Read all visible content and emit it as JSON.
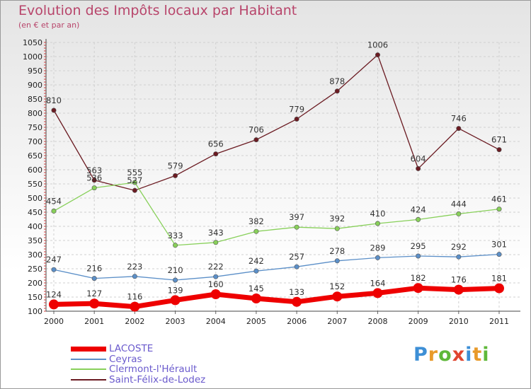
{
  "title": "Evolution des Impôts locaux par Habitant",
  "subtitle": "(en € et par an)",
  "logo_text": "Proxiti",
  "chart_data": {
    "type": "line",
    "title": "Evolution des Impôts locaux par Habitant",
    "subtitle": "(en € et par an)",
    "x": [
      2000,
      2001,
      2002,
      2003,
      2004,
      2005,
      2006,
      2007,
      2008,
      2009,
      2010,
      2011
    ],
    "ylim": [
      100,
      1050
    ],
    "yticks": [
      100,
      150,
      200,
      250,
      300,
      350,
      400,
      450,
      500,
      550,
      600,
      650,
      700,
      750,
      800,
      850,
      900,
      950,
      1000,
      1050
    ],
    "grid": true,
    "legend_position": "bottom-left",
    "series": [
      {
        "name": "LACOSTE",
        "color": "#ee0000",
        "values": [
          124,
          127,
          116,
          139,
          160,
          145,
          133,
          152,
          164,
          182,
          176,
          181
        ]
      },
      {
        "name": "Ceyras",
        "color": "#5b8fc8",
        "values": [
          247,
          216,
          223,
          210,
          222,
          242,
          257,
          278,
          289,
          295,
          292,
          301
        ]
      },
      {
        "name": "Clermont-l'Hérault",
        "color": "#88d05a",
        "values": [
          454,
          536,
          555,
          333,
          343,
          382,
          397,
          392,
          410,
          424,
          444,
          461
        ]
      },
      {
        "name": "Saint-Félix-de-Lodez",
        "color": "#6b1b22",
        "values": [
          810,
          563,
          527,
          579,
          656,
          706,
          779,
          878,
          1006,
          604,
          746,
          671
        ]
      }
    ]
  }
}
